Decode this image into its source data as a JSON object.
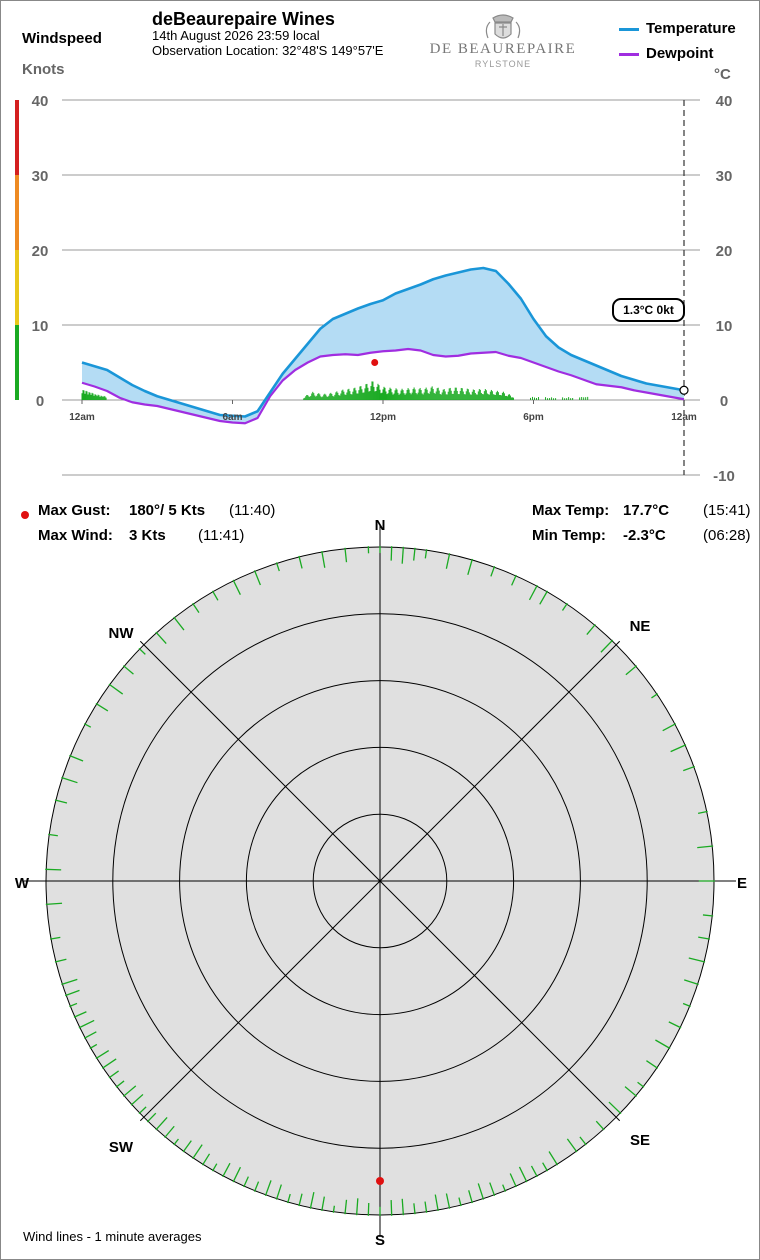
{
  "header": {
    "windspeed_label": "Windspeed",
    "windspeed_unit": "Knots",
    "site_title": "deBeaurepaire Wines",
    "date_time": "14th August 2026  23:59 local",
    "location": "Observation Location: 32°48'S 149°57'E",
    "logo_name": "DE BEAUREPAIRE",
    "logo_sub": "RYLSTONE",
    "temp_unit": "°C"
  },
  "legend": {
    "temperature_label": "Temperature",
    "dewpoint_label": "Dewpoint"
  },
  "colors": {
    "temperature": "#1a96d8",
    "dewpoint": "#a02de0",
    "temp_fill": "#b4dcf4",
    "wind": "#1aaa22",
    "gust_marker": "#e01010",
    "rose_bg": "#e0e0e0"
  },
  "current_readout": "1.3°C  0kt",
  "summary": {
    "max_gust_label": "Max Gust:",
    "max_gust_value": "180°/ 5 Kts",
    "max_gust_time": "(11:40)",
    "max_wind_label": "Max Wind:",
    "max_wind_value": "3 Kts",
    "max_wind_time": "(11:41)",
    "max_temp_label": "Max Temp:",
    "max_temp_value": "17.7°C",
    "max_temp_time": "(15:41)",
    "min_temp_label": "Min Temp:",
    "min_temp_value": "-2.3°C",
    "min_temp_time": "(06:28)"
  },
  "compass": {
    "N": "N",
    "NE": "NE",
    "E": "E",
    "SE": "SE",
    "S": "S",
    "SW": "SW",
    "W": "W",
    "NW": "NW"
  },
  "footnote": "Wind lines - 1 minute averages",
  "chart_data": [
    {
      "type": "line",
      "x_unit": "hour of day",
      "xlim": [
        0,
        24
      ],
      "x_ticks": [
        {
          "x": 0,
          "label": "12am"
        },
        {
          "x": 6,
          "label": "6am"
        },
        {
          "x": 12,
          "label": "12pm"
        },
        {
          "x": 18,
          "label": "6pm"
        },
        {
          "x": 24,
          "label": "12am"
        }
      ],
      "wind_axis": {
        "label": "Knots",
        "ylim": [
          0,
          40
        ],
        "ticks": [
          0,
          10,
          20,
          30,
          40
        ],
        "color_bands": [
          {
            "from": 0,
            "to": 10,
            "color": "#1aaa22"
          },
          {
            "from": 10,
            "to": 20,
            "color": "#e8c81a"
          },
          {
            "from": 20,
            "to": 30,
            "color": "#ee8a22"
          },
          {
            "from": 30,
            "to": 40,
            "color": "#d42020"
          }
        ]
      },
      "temp_axis": {
        "label": "°C",
        "ylim": [
          -10,
          40
        ],
        "ticks": [
          -10,
          0,
          10,
          20,
          30,
          40
        ]
      },
      "grid": true,
      "series": [
        {
          "name": "Temperature",
          "x": [
            0,
            0.5,
            1,
            1.5,
            2,
            2.5,
            3,
            3.5,
            4,
            4.5,
            5,
            5.5,
            6,
            6.5,
            7,
            7.5,
            8,
            8.5,
            9,
            9.5,
            10,
            10.5,
            11,
            11.5,
            12,
            12.5,
            13,
            13.5,
            14,
            14.5,
            15,
            15.5,
            16,
            16.5,
            17,
            17.5,
            18,
            18.5,
            19,
            19.5,
            20,
            20.5,
            21,
            21.5,
            22,
            22.5,
            23,
            23.5,
            24
          ],
          "y": [
            5.0,
            4.5,
            4.0,
            3.0,
            2.0,
            1.2,
            0.5,
            0.0,
            -0.5,
            -1.0,
            -1.5,
            -2.0,
            -2.1,
            -2.2,
            -1.5,
            1.0,
            3.5,
            5.5,
            7.5,
            9.5,
            10.8,
            11.5,
            12.2,
            12.8,
            13.3,
            14.2,
            14.8,
            15.4,
            16.1,
            16.6,
            17.0,
            17.4,
            17.6,
            17.2,
            15.5,
            13.5,
            10.8,
            8.5,
            7.0,
            6.0,
            5.3,
            4.6,
            3.9,
            3.2,
            2.7,
            2.2,
            1.9,
            1.6,
            1.3
          ]
        },
        {
          "name": "Dewpoint",
          "x": [
            0,
            0.5,
            1,
            1.5,
            2,
            2.5,
            3,
            3.5,
            4,
            4.5,
            5,
            5.5,
            6,
            6.5,
            7,
            7.5,
            8,
            8.5,
            9,
            9.5,
            10,
            10.5,
            11,
            11.5,
            12,
            12.5,
            13,
            13.5,
            14,
            14.5,
            15,
            15.5,
            16,
            16.5,
            17,
            17.5,
            18,
            18.5,
            19,
            19.5,
            20,
            20.5,
            21,
            21.5,
            22,
            22.5,
            23,
            23.5,
            24
          ],
          "y": [
            2.3,
            1.8,
            1.2,
            0.3,
            -0.3,
            -0.6,
            -0.8,
            -1.2,
            -1.6,
            -2.0,
            -2.4,
            -2.8,
            -3.0,
            -3.1,
            -2.4,
            0.5,
            2.6,
            4.0,
            5.0,
            5.8,
            6.0,
            6.1,
            6.0,
            6.3,
            6.5,
            6.6,
            6.8,
            6.6,
            6.0,
            5.8,
            5.9,
            6.2,
            6.3,
            6.4,
            5.9,
            5.6,
            5.0,
            4.4,
            3.8,
            3.3,
            2.7,
            2.1,
            1.9,
            1.7,
            1.3,
            1.0,
            0.7,
            0.4,
            0.1
          ]
        },
        {
          "name": "Windspeed 1-min average",
          "x": [
            0,
            0.3,
            0.6,
            1.0,
            8.8,
            9.2,
            9.6,
            10.0,
            10.4,
            10.8,
            11.2,
            11.6,
            12.0,
            12.4,
            12.8,
            13.2,
            13.6,
            14.0,
            14.4,
            14.8,
            15.2,
            15.6,
            16.0,
            16.4,
            16.8,
            17.2,
            18.0,
            19.0,
            20.2
          ],
          "y": [
            2.0,
            1.5,
            1.0,
            0.6,
            0.4,
            1.1,
            0.8,
            1.0,
            1.4,
            1.6,
            2.0,
            2.6,
            1.8,
            1.6,
            1.5,
            1.7,
            1.6,
            1.9,
            1.5,
            1.8,
            1.7,
            1.5,
            1.6,
            1.4,
            1.2,
            0.6,
            0.5,
            0.4,
            0.6
          ]
        }
      ],
      "markers": [
        {
          "name": "Max Gust",
          "x": 11.67,
          "wind_value": 5
        }
      ],
      "current_time_marker": 24
    },
    {
      "type": "scatter",
      "chart": "wind rose",
      "rings": 5,
      "gust_marker_direction": 180,
      "wind_direction_samples_deg": [
        0,
        2,
        4,
        6,
        8,
        12,
        16,
        20,
        24,
        28,
        30,
        34,
        40,
        44,
        50,
        56,
        62,
        66,
        70,
        78,
        84,
        90,
        96,
        100,
        104,
        108,
        112,
        116,
        120,
        124,
        128,
        130,
        134,
        138,
        142,
        144,
        148,
        150,
        152,
        154,
        156,
        158,
        160,
        162,
        164,
        166,
        168,
        170,
        172,
        174,
        176,
        178,
        180,
        182,
        184,
        186,
        188,
        190,
        192,
        194,
        196,
        198,
        200,
        202,
        204,
        206,
        208,
        210,
        212,
        214,
        216,
        218,
        220,
        222,
        224,
        226,
        228,
        230,
        232,
        234,
        236,
        238,
        240,
        242,
        244,
        246,
        248,
        250,
        252,
        256,
        260,
        266,
        272,
        278,
        284,
        288,
        292,
        298,
        302,
        306,
        310,
        314,
        318,
        322,
        326,
        330,
        334,
        338,
        342,
        346,
        350,
        354,
        358
      ]
    }
  ]
}
